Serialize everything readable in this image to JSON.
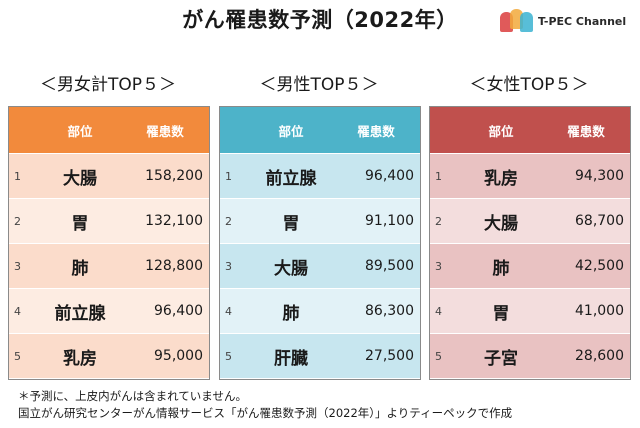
{
  "title": "がん罹患数予測（2022年）",
  "logo": {
    "text": "T-PEC Channel",
    "colors": [
      "#e05a5a",
      "#f2a93b",
      "#3bb3d1"
    ]
  },
  "chart_data": [
    {
      "type": "table",
      "section_title": "＜男女計TOP５＞",
      "columns": [
        "部位",
        "罹患数"
      ],
      "header_color": "#f28a3c",
      "row_colors": [
        "#fbdccb",
        "#fdece2"
      ],
      "rows": [
        {
          "rank": "1",
          "site": "大腸",
          "value": "158,200"
        },
        {
          "rank": "2",
          "site": "胃",
          "value": "132,100"
        },
        {
          "rank": "3",
          "site": "肺",
          "value": "128,800"
        },
        {
          "rank": "4",
          "site": "前立腺",
          "value": "96,400"
        },
        {
          "rank": "5",
          "site": "乳房",
          "value": "95,000"
        }
      ]
    },
    {
      "type": "table",
      "section_title": "＜男性TOP５＞",
      "columns": [
        "部位",
        "罹患数"
      ],
      "header_color": "#4db3c9",
      "row_colors": [
        "#c7e6ef",
        "#e2f2f7"
      ],
      "rows": [
        {
          "rank": "1",
          "site": "前立腺",
          "value": "96,400"
        },
        {
          "rank": "2",
          "site": "胃",
          "value": "91,100"
        },
        {
          "rank": "3",
          "site": "大腸",
          "value": "89,500"
        },
        {
          "rank": "4",
          "site": "肺",
          "value": "86,300"
        },
        {
          "rank": "5",
          "site": "肝臓",
          "value": "27,500"
        }
      ]
    },
    {
      "type": "table",
      "section_title": "＜女性TOP５＞",
      "columns": [
        "部位",
        "罹患数"
      ],
      "header_color": "#c0504d",
      "row_colors": [
        "#e9c2c2",
        "#f3dddd"
      ],
      "rows": [
        {
          "rank": "1",
          "site": "乳房",
          "value": "94,300"
        },
        {
          "rank": "2",
          "site": "大腸",
          "value": "68,700"
        },
        {
          "rank": "3",
          "site": "肺",
          "value": "42,500"
        },
        {
          "rank": "4",
          "site": "胃",
          "value": "41,000"
        },
        {
          "rank": "5",
          "site": "子宮",
          "value": "28,600"
        }
      ]
    }
  ],
  "notes": [
    "＊予測に、上皮内がんは含まれていません。",
    "国立がん研究センターがん情報サービス「がん罹患数予測（2022年）」よりティーペックで作成"
  ]
}
